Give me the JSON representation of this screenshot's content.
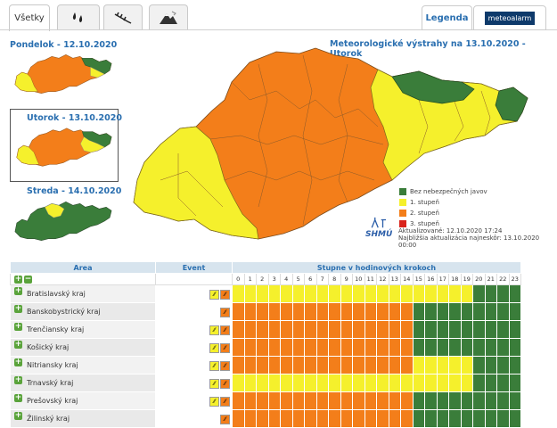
{
  "tabs": [
    {
      "label": "Všetky",
      "active": true
    },
    {
      "icon": "rain-drops-icon"
    },
    {
      "icon": "wind-icon"
    },
    {
      "icon": "mountain-snow-icon"
    }
  ],
  "header": {
    "legend_label": "Legenda",
    "meteoalarm_label": "meteoalarm"
  },
  "days": [
    {
      "title": "Pondelok - 12.10.2020"
    },
    {
      "title": "Utorok - 13.10.2020",
      "selected": true
    },
    {
      "title": "Streda - 14.10.2020"
    }
  ],
  "main_title": "Meteorologické výstrahy na 13.10.2020 - Utorok",
  "legend": [
    {
      "label": "Bez nebezpečných javov",
      "color": "#3a7d3a"
    },
    {
      "label": "1. stupeň",
      "color": "#f5f02c"
    },
    {
      "label": "2. stupeň",
      "color": "#f37e1a"
    },
    {
      "label": "3. stupeň",
      "color": "#d9231b"
    }
  ],
  "logo": "SHMÚ",
  "update": {
    "line1": "Aktualizované: 12.10.2020 17:24",
    "line2": "Najbližšia aktualizácia najneskôr: 13.10.2020",
    "line3": "00:00"
  },
  "table": {
    "col_area": "Area",
    "col_event": "Event",
    "col_hours": "Stupne v hodinových krokoch",
    "hours": [
      "0",
      "1",
      "2",
      "3",
      "4",
      "5",
      "6",
      "7",
      "8",
      "9",
      "10",
      "11",
      "12",
      "13",
      "14",
      "15",
      "16",
      "17",
      "18",
      "19",
      "20",
      "21",
      "22",
      "23"
    ],
    "colors": {
      "Y": "#f5f02c",
      "O": "#f37e1a",
      "G": "#3a7d3a"
    },
    "rows": [
      {
        "name": "Bratislavský kraj",
        "events": 2,
        "levels": "YYYYYYYYYYYYYYYYYYYYGGGG"
      },
      {
        "name": "Banskobystrický kraj",
        "events": 1,
        "levels": "OOOOOOOOOOOOOOOGGGGGGGGG"
      },
      {
        "name": "Trenčiansky kraj",
        "events": 2,
        "levels": "OOOOOOOOOOOOOOOGGGGGGGGG"
      },
      {
        "name": "Košický kraj",
        "events": 2,
        "levels": "OOOOOOOOOOOOOOOGGGGGGGGG"
      },
      {
        "name": "Nitriansky kraj",
        "events": 2,
        "levels": "OOOOOOOOOOOOOOOYYYYYGGGG"
      },
      {
        "name": "Trnavský kraj",
        "events": 2,
        "levels": "YYYYYYYYYYYYYYYYYYYYGGGG"
      },
      {
        "name": "Prešovský kraj",
        "events": 2,
        "levels": "OOOOOOOOOOOOOOOGGGGGGGGG"
      },
      {
        "name": "Žilinský kraj",
        "events": 1,
        "levels": "OOOOOOOOOOOOOOOGGGGGGGGG"
      }
    ]
  }
}
